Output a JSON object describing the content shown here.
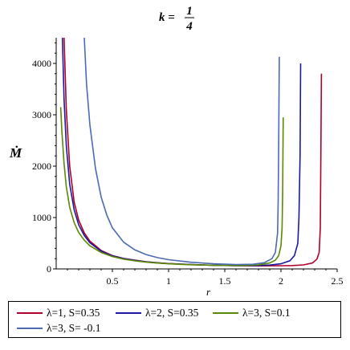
{
  "chart_data": {
    "type": "line",
    "title": {
      "lhs": "k = ",
      "num": "1",
      "den": "4"
    },
    "ylabel": "Ṁ",
    "xlabel": "r",
    "xlim": [
      0,
      2.5
    ],
    "ylim": [
      0,
      4500
    ],
    "x_ticks": [
      "0.5",
      "1",
      "1.5",
      "2",
      "2.5"
    ],
    "y_ticks": [
      "0",
      "1000",
      "2000",
      "3000",
      "4000"
    ],
    "series": [
      {
        "name": "λ=1, S=0.35",
        "color": "#b0002a",
        "points": [
          [
            0.07,
            4500
          ],
          [
            0.09,
            3100
          ],
          [
            0.12,
            2000
          ],
          [
            0.16,
            1300
          ],
          [
            0.2,
            950
          ],
          [
            0.25,
            700
          ],
          [
            0.3,
            540
          ],
          [
            0.4,
            360
          ],
          [
            0.5,
            260
          ],
          [
            0.6,
            205
          ],
          [
            0.7,
            170
          ],
          [
            0.8,
            140
          ],
          [
            0.9,
            120
          ],
          [
            1.0,
            105
          ],
          [
            1.2,
            85
          ],
          [
            1.4,
            72
          ],
          [
            1.6,
            64
          ],
          [
            1.8,
            60
          ],
          [
            2.0,
            62
          ],
          [
            2.1,
            66
          ],
          [
            2.2,
            78
          ],
          [
            2.28,
            115
          ],
          [
            2.32,
            190
          ],
          [
            2.34,
            320
          ],
          [
            2.35,
            800
          ],
          [
            2.355,
            2200
          ],
          [
            2.36,
            3800
          ]
        ]
      },
      {
        "name": "λ=2, S=0.35",
        "color": "#1a1aa0",
        "points": [
          [
            0.055,
            4500
          ],
          [
            0.07,
            3300
          ],
          [
            0.09,
            2400
          ],
          [
            0.12,
            1650
          ],
          [
            0.16,
            1150
          ],
          [
            0.2,
            860
          ],
          [
            0.25,
            650
          ],
          [
            0.3,
            510
          ],
          [
            0.4,
            345
          ],
          [
            0.5,
            255
          ],
          [
            0.6,
            200
          ],
          [
            0.7,
            165
          ],
          [
            0.8,
            138
          ],
          [
            0.9,
            118
          ],
          [
            1.0,
            103
          ],
          [
            1.2,
            84
          ],
          [
            1.4,
            71
          ],
          [
            1.6,
            64
          ],
          [
            1.8,
            66
          ],
          [
            1.9,
            75
          ],
          [
            2.0,
            100
          ],
          [
            2.08,
            160
          ],
          [
            2.12,
            260
          ],
          [
            2.15,
            500
          ],
          [
            2.16,
            1000
          ],
          [
            2.17,
            2200
          ],
          [
            2.175,
            4000
          ]
        ]
      },
      {
        "name": "λ=3, S=0.1",
        "color": "#5a8a00",
        "points": [
          [
            0.04,
            3150
          ],
          [
            0.05,
            2700
          ],
          [
            0.07,
            2050
          ],
          [
            0.09,
            1600
          ],
          [
            0.12,
            1200
          ],
          [
            0.16,
            900
          ],
          [
            0.2,
            710
          ],
          [
            0.25,
            560
          ],
          [
            0.3,
            450
          ],
          [
            0.4,
            320
          ],
          [
            0.5,
            240
          ],
          [
            0.6,
            190
          ],
          [
            0.7,
            158
          ],
          [
            0.8,
            132
          ],
          [
            0.9,
            114
          ],
          [
            1.0,
            100
          ],
          [
            1.2,
            82
          ],
          [
            1.4,
            70
          ],
          [
            1.6,
            65
          ],
          [
            1.7,
            68
          ],
          [
            1.8,
            80
          ],
          [
            1.9,
            115
          ],
          [
            1.95,
            170
          ],
          [
            1.98,
            260
          ],
          [
            2.0,
            450
          ],
          [
            2.01,
            800
          ],
          [
            2.015,
            1500
          ],
          [
            2.02,
            2950
          ]
        ]
      },
      {
        "name": "λ=3, S= -0.1",
        "color": "#4a6ab4",
        "points": [
          [
            0.25,
            4500
          ],
          [
            0.27,
            3600
          ],
          [
            0.3,
            2800
          ],
          [
            0.35,
            1950
          ],
          [
            0.4,
            1400
          ],
          [
            0.45,
            1050
          ],
          [
            0.5,
            800
          ],
          [
            0.6,
            520
          ],
          [
            0.7,
            370
          ],
          [
            0.8,
            280
          ],
          [
            0.9,
            220
          ],
          [
            1.0,
            180
          ],
          [
            1.2,
            130
          ],
          [
            1.4,
            100
          ],
          [
            1.6,
            85
          ],
          [
            1.75,
            90
          ],
          [
            1.85,
            120
          ],
          [
            1.92,
            200
          ],
          [
            1.95,
            320
          ],
          [
            1.97,
            700
          ],
          [
            1.975,
            1300
          ],
          [
            1.98,
            2500
          ],
          [
            1.985,
            4130
          ]
        ]
      }
    ]
  }
}
